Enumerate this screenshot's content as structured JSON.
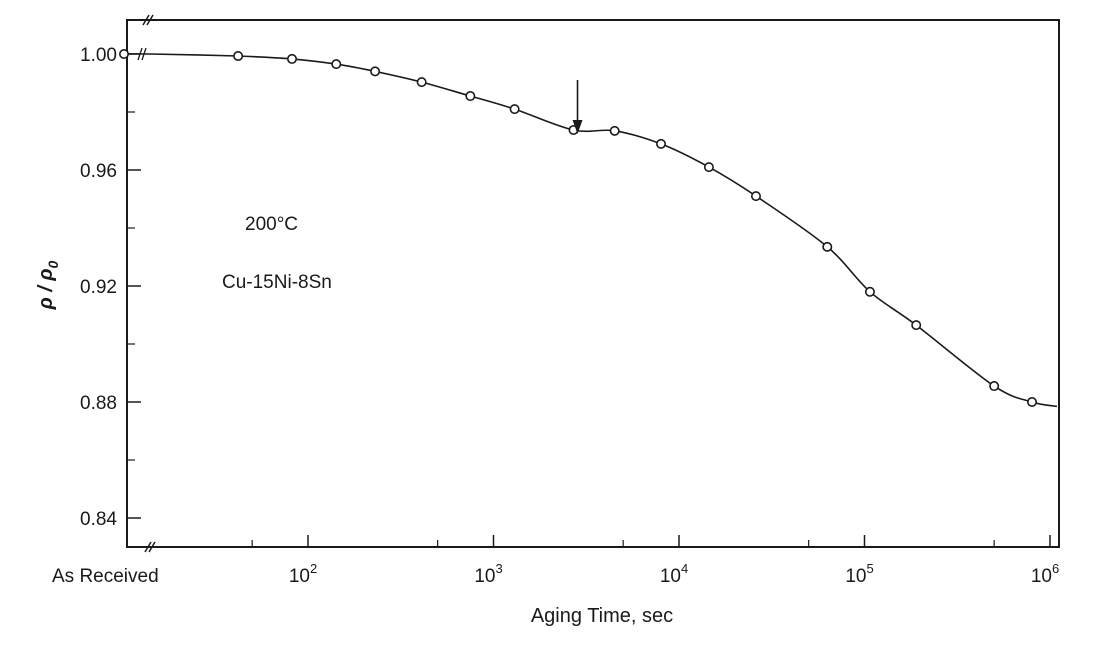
{
  "chart_data": {
    "type": "line",
    "title": "",
    "xlabel": "Aging Time, sec",
    "ylabel_main": "ρ / ρ",
    "ylabel_sub": "0",
    "xscale": "log",
    "xlim": [
      10,
      1000000
    ],
    "ylim": [
      0.83,
      1.01
    ],
    "grid": false,
    "y_ticks": [
      "0.84",
      "0.88",
      "0.92",
      "0.96",
      "1.00"
    ],
    "x_ticks": [
      {
        "base": "10",
        "exp": "2"
      },
      {
        "base": "10",
        "exp": "3"
      },
      {
        "base": "10",
        "exp": "4"
      },
      {
        "base": "10",
        "exp": "5"
      },
      {
        "base": "10",
        "exp": "6"
      }
    ],
    "x_start_label": "As Received",
    "annotations": [
      "200°C",
      "Cu-15Ni-8Sn"
    ],
    "arrow_at_x": 2700,
    "series": [
      {
        "x": [
          0,
          42,
          82,
          142,
          230,
          410,
          750,
          1300,
          2700,
          4500,
          8000,
          14500,
          26000,
          63000,
          107000,
          190000,
          500000,
          800000
        ],
        "y": [
          1.0,
          0.9993,
          0.9983,
          0.9965,
          0.994,
          0.9903,
          0.9855,
          0.981,
          0.9738,
          0.9735,
          0.969,
          0.961,
          0.951,
          0.9335,
          0.918,
          0.9065,
          0.8855,
          0.88
        ]
      }
    ]
  }
}
